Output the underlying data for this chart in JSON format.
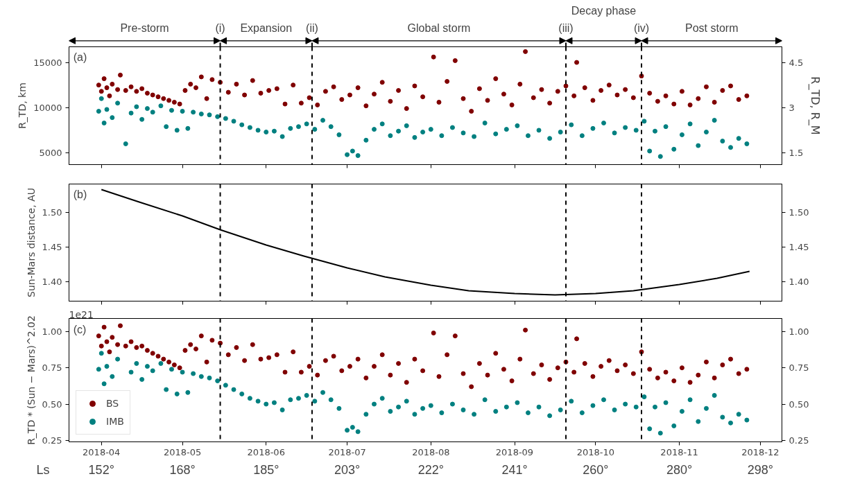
{
  "chart_data": [
    {
      "type": "scatter",
      "title": "(a)",
      "ylabel": "R_TD, km",
      "y2label": "R_TD, R_M",
      "xlim": [
        "2018-03-20",
        "2018-12-09"
      ],
      "ylim": [
        3700,
        16730
      ],
      "y2lim": [
        1.11,
        5.02
      ],
      "yticks": [
        5000,
        10000,
        15000
      ],
      "y2ticks": [
        1.5,
        3,
        4.5
      ],
      "xticks": [
        {
          "value": "2018-04-01",
          "label": null
        },
        {
          "value": "2018-05-01",
          "label": null
        },
        {
          "value": "2018-06-01",
          "label": null
        },
        {
          "value": "2018-07-01",
          "label": null
        },
        {
          "value": "2018-08-01",
          "label": null
        },
        {
          "value": "2018-09-01",
          "label": null
        },
        {
          "value": "2018-10-01",
          "label": null
        },
        {
          "value": "2018-11-01",
          "label": null
        },
        {
          "value": "2018-12-01",
          "label": null
        }
      ],
      "tick_labels": "y",
      "grid": false,
      "marker": "circle",
      "legend": false,
      "annotations": [
        "Pre-storm",
        "Expansion",
        "Global storm",
        "Decay phase",
        "Post storm"
      ],
      "ref_lines": [
        {
          "axis": "x",
          "value": "2018-05-15",
          "label": "(i)",
          "color": "#000000",
          "line_style": "dashed"
        },
        {
          "axis": "x",
          "value": "2018-06-18",
          "label": "(ii)",
          "color": "#000000",
          "line_style": "dashed"
        },
        {
          "axis": "x",
          "value": "2018-09-20",
          "label": "(iii)",
          "color": "#000000",
          "line_style": "dashed"
        },
        {
          "axis": "x",
          "value": "2018-10-18",
          "label": "(iv)",
          "color": "#000000",
          "line_style": "dashed"
        }
      ],
      "series": [
        {
          "color": "#800000",
          "x": [
            "2018-03-31",
            "2018-04-01",
            "2018-04-02",
            "2018-04-03",
            "2018-04-04",
            "2018-04-05",
            "2018-04-07",
            "2018-04-08",
            "2018-04-10",
            "2018-04-12",
            "2018-04-14",
            "2018-04-16",
            "2018-04-18",
            "2018-04-20",
            "2018-04-22",
            "2018-04-24",
            "2018-04-26",
            "2018-04-28",
            "2018-04-30",
            "2018-05-02",
            "2018-05-04",
            "2018-05-06",
            "2018-05-08",
            "2018-05-10",
            "2018-05-12",
            "2018-05-15",
            "2018-05-18",
            "2018-05-21",
            "2018-05-24",
            "2018-05-27",
            "2018-05-30",
            "2018-06-02",
            "2018-06-05",
            "2018-06-08",
            "2018-06-11",
            "2018-06-14",
            "2018-06-17",
            "2018-06-20",
            "2018-06-23",
            "2018-06-26",
            "2018-06-29",
            "2018-07-02",
            "2018-07-05",
            "2018-07-08",
            "2018-07-11",
            "2018-07-14",
            "2018-07-17",
            "2018-07-20",
            "2018-07-23",
            "2018-07-26",
            "2018-07-29",
            "2018-08-02",
            "2018-08-04",
            "2018-08-07",
            "2018-08-10",
            "2018-08-13",
            "2018-08-16",
            "2018-08-19",
            "2018-08-22",
            "2018-08-25",
            "2018-08-28",
            "2018-08-31",
            "2018-09-03",
            "2018-09-05",
            "2018-09-08",
            "2018-09-11",
            "2018-09-14",
            "2018-09-17",
            "2018-09-20",
            "2018-09-23",
            "2018-09-24",
            "2018-09-27",
            "2018-09-30",
            "2018-10-03",
            "2018-10-06",
            "2018-10-09",
            "2018-10-12",
            "2018-10-15",
            "2018-10-18",
            "2018-10-21",
            "2018-10-24",
            "2018-10-27",
            "2018-10-30",
            "2018-11-02",
            "2018-11-05",
            "2018-11-08",
            "2018-11-11",
            "2018-11-14",
            "2018-11-17",
            "2018-11-20",
            "2018-11-23",
            "2018-11-26"
          ],
          "values": [
            12500,
            11800,
            13200,
            12200,
            11300,
            12600,
            12000,
            13600,
            11900,
            12300,
            11800,
            12100,
            11600,
            11400,
            11200,
            11000,
            10800,
            10600,
            10400,
            11900,
            12600,
            12200,
            13400,
            11000,
            13100,
            12800,
            11700,
            12600,
            11400,
            13000,
            11600,
            11900,
            12100,
            10400,
            12500,
            10500,
            11100,
            10300,
            11800,
            12300,
            10900,
            11400,
            12200,
            10200,
            11500,
            12800,
            10700,
            11900,
            9900,
            12400,
            11200,
            15600,
            10600,
            12900,
            15200,
            11000,
            9600,
            12100,
            10800,
            13200,
            11500,
            10300,
            12600,
            16200,
            11100,
            12000,
            10500,
            11800,
            12400,
            11300,
            15000,
            12200,
            10800,
            11900,
            12500,
            11400,
            12000,
            11100,
            13500,
            11600,
            10700,
            11300,
            10400,
            11800,
            10300,
            11000,
            12300,
            10600,
            11900,
            12400,
            10900,
            11300
          ]
        },
        {
          "color": "#008080",
          "x": [
            "2018-03-31",
            "2018-04-01",
            "2018-04-02",
            "2018-04-03",
            "2018-04-05",
            "2018-04-07",
            "2018-04-10",
            "2018-04-12",
            "2018-04-14",
            "2018-04-16",
            "2018-04-18",
            "2018-04-20",
            "2018-04-23",
            "2018-04-25",
            "2018-04-27",
            "2018-04-29",
            "2018-05-01",
            "2018-05-03",
            "2018-05-05",
            "2018-05-08",
            "2018-05-11",
            "2018-05-14",
            "2018-05-17",
            "2018-05-20",
            "2018-05-23",
            "2018-05-26",
            "2018-05-29",
            "2018-06-01",
            "2018-06-04",
            "2018-06-07",
            "2018-06-10",
            "2018-06-13",
            "2018-06-16",
            "2018-06-19",
            "2018-06-22",
            "2018-06-25",
            "2018-06-28",
            "2018-07-01",
            "2018-07-03",
            "2018-07-05",
            "2018-07-08",
            "2018-07-11",
            "2018-07-14",
            "2018-07-17",
            "2018-07-20",
            "2018-07-23",
            "2018-07-26",
            "2018-07-29",
            "2018-08-01",
            "2018-08-05",
            "2018-08-09",
            "2018-08-13",
            "2018-08-17",
            "2018-08-21",
            "2018-08-25",
            "2018-08-29",
            "2018-09-02",
            "2018-09-06",
            "2018-09-10",
            "2018-09-14",
            "2018-09-18",
            "2018-09-22",
            "2018-09-26",
            "2018-09-30",
            "2018-10-04",
            "2018-10-08",
            "2018-10-12",
            "2018-10-16",
            "2018-10-19",
            "2018-10-21",
            "2018-10-23",
            "2018-10-25",
            "2018-10-27",
            "2018-10-30",
            "2018-11-02",
            "2018-11-05",
            "2018-11-08",
            "2018-11-11",
            "2018-11-14",
            "2018-11-17",
            "2018-11-20",
            "2018-11-23",
            "2018-11-26"
          ],
          "values": [
            9600,
            11000,
            8300,
            9800,
            8900,
            10500,
            6000,
            9400,
            10100,
            8700,
            9900,
            9500,
            10200,
            7900,
            9700,
            7500,
            9600,
            7700,
            9500,
            9300,
            9200,
            9000,
            8800,
            8500,
            8100,
            7800,
            7500,
            7300,
            7400,
            6800,
            7700,
            7900,
            8200,
            7600,
            8600,
            7900,
            7000,
            4800,
            5200,
            4700,
            6400,
            7600,
            8200,
            6900,
            7400,
            8000,
            6700,
            7300,
            7600,
            6900,
            7800,
            7200,
            6800,
            8300,
            7100,
            7600,
            8000,
            6900,
            7500,
            6600,
            7300,
            8100,
            6900,
            7700,
            8300,
            7200,
            7800,
            7500,
            8500,
            5200,
            7400,
            4600,
            7900,
            5400,
            7000,
            8200,
            5800,
            7300,
            8600,
            6300,
            5600,
            6600,
            6000
          ]
        }
      ]
    },
    {
      "type": "line",
      "title": "(b)",
      "ylabel": "Sun-Mars distance, AU",
      "xlim": [
        "2018-03-20",
        "2018-12-09"
      ],
      "ylim": [
        1.372,
        1.541
      ],
      "y2lim": [
        1.372,
        1.541
      ],
      "yticks": [
        {
          "value": 1.4,
          "label": "1.40"
        },
        {
          "value": 1.45,
          "label": "1.45"
        },
        {
          "value": 1.5,
          "label": "1.50"
        }
      ],
      "y2ticks": [
        {
          "value": 1.4,
          "label": "1.40"
        },
        {
          "value": 1.45,
          "label": "1.45"
        },
        {
          "value": 1.5,
          "label": "1.50"
        }
      ],
      "xticks": [
        {
          "value": "2018-04-01",
          "label": null
        },
        {
          "value": "2018-05-01",
          "label": null
        },
        {
          "value": "2018-06-01",
          "label": null
        },
        {
          "value": "2018-07-01",
          "label": null
        },
        {
          "value": "2018-08-01",
          "label": null
        },
        {
          "value": "2018-09-01",
          "label": null
        },
        {
          "value": "2018-10-01",
          "label": null
        },
        {
          "value": "2018-11-01",
          "label": null
        },
        {
          "value": "2018-12-01",
          "label": null
        }
      ],
      "tick_labels": "y",
      "grid": false,
      "legend": false,
      "line_style": "solid",
      "ref_lines": [
        {
          "axis": "x",
          "value": "2018-05-15",
          "color": "#000000",
          "line_style": "dashed"
        },
        {
          "axis": "x",
          "value": "2018-06-18",
          "color": "#000000",
          "line_style": "dashed"
        },
        {
          "axis": "x",
          "value": "2018-09-20",
          "color": "#000000",
          "line_style": "dashed"
        },
        {
          "axis": "x",
          "value": "2018-10-18",
          "color": "#000000",
          "line_style": "dashed"
        }
      ],
      "series": [
        {
          "color": "#000000",
          "x": [
            "2018-04-01",
            "2018-04-15",
            "2018-05-01",
            "2018-05-15",
            "2018-06-01",
            "2018-06-15",
            "2018-07-01",
            "2018-07-15",
            "2018-08-01",
            "2018-08-15",
            "2018-09-01",
            "2018-09-16",
            "2018-10-01",
            "2018-10-15",
            "2018-11-01",
            "2018-11-15",
            "2018-11-27"
          ],
          "values": [
            1.533,
            1.515,
            1.495,
            1.475,
            1.453,
            1.437,
            1.42,
            1.407,
            1.395,
            1.387,
            1.383,
            1.381,
            1.383,
            1.387,
            1.396,
            1.405,
            1.415
          ]
        }
      ]
    },
    {
      "type": "scatter",
      "title": "(c)",
      "ylabel": "R_TD * (Sun − Mars)^2.02",
      "xlim": [
        "2018-03-20",
        "2018-12-09"
      ],
      "ylim": [
        0.24,
        1.09
      ],
      "y2lim": [
        0.24,
        1.09
      ],
      "yticks": [
        0.25,
        {
          "value": 0.5,
          "label": "0.50"
        },
        0.75,
        {
          "value": 1.0,
          "label": "1.00"
        }
      ],
      "y2ticks": [
        0.25,
        {
          "value": 0.5,
          "label": "0.50"
        },
        0.75,
        {
          "value": 1.0,
          "label": "1.00"
        }
      ],
      "xticks": [
        {
          "value": "2018-04-01",
          "label": "2018-04"
        },
        {
          "value": "2018-05-01",
          "label": "2018-05"
        },
        {
          "value": "2018-06-01",
          "label": "2018-06"
        },
        {
          "value": "2018-07-01",
          "label": "2018-07"
        },
        {
          "value": "2018-08-01",
          "label": "2018-08"
        },
        {
          "value": "2018-09-01",
          "label": "2018-09"
        },
        {
          "value": "2018-10-01",
          "label": "2018-10"
        },
        {
          "value": "2018-11-01",
          "label": "2018-11"
        },
        {
          "value": "2018-12-01",
          "label": "2018-12"
        }
      ],
      "grid": false,
      "marker": "circle",
      "legend": "bottom left",
      "annotations": [
        "1e21",
        "Ls",
        "152°",
        "168°",
        "185°",
        "203°",
        "222°",
        "241°",
        "260°",
        "280°",
        "298°"
      ],
      "ref_lines": [
        {
          "axis": "x",
          "value": "2018-05-15",
          "color": "#000000",
          "line_style": "dashed"
        },
        {
          "axis": "x",
          "value": "2018-06-18",
          "color": "#000000",
          "line_style": "dashed"
        },
        {
          "axis": "x",
          "value": "2018-09-20",
          "color": "#000000",
          "line_style": "dashed"
        },
        {
          "axis": "x",
          "value": "2018-10-18",
          "color": "#000000",
          "line_style": "dashed"
        }
      ],
      "series": [
        {
          "name": "BS",
          "color": "#800000",
          "x": [
            "2018-03-31",
            "2018-04-01",
            "2018-04-02",
            "2018-04-03",
            "2018-04-04",
            "2018-04-05",
            "2018-04-07",
            "2018-04-08",
            "2018-04-10",
            "2018-04-12",
            "2018-04-14",
            "2018-04-16",
            "2018-04-18",
            "2018-04-20",
            "2018-04-22",
            "2018-04-24",
            "2018-04-26",
            "2018-04-28",
            "2018-04-30",
            "2018-05-02",
            "2018-05-04",
            "2018-05-06",
            "2018-05-08",
            "2018-05-10",
            "2018-05-12",
            "2018-05-15",
            "2018-05-18",
            "2018-05-21",
            "2018-05-24",
            "2018-05-27",
            "2018-05-30",
            "2018-06-02",
            "2018-06-05",
            "2018-06-08",
            "2018-06-11",
            "2018-06-14",
            "2018-06-17",
            "2018-06-20",
            "2018-06-23",
            "2018-06-26",
            "2018-06-29",
            "2018-07-02",
            "2018-07-05",
            "2018-07-08",
            "2018-07-11",
            "2018-07-14",
            "2018-07-17",
            "2018-07-20",
            "2018-07-23",
            "2018-07-26",
            "2018-07-29",
            "2018-08-02",
            "2018-08-04",
            "2018-08-07",
            "2018-08-10",
            "2018-08-13",
            "2018-08-16",
            "2018-08-19",
            "2018-08-22",
            "2018-08-25",
            "2018-08-28",
            "2018-08-31",
            "2018-09-03",
            "2018-09-05",
            "2018-09-08",
            "2018-09-11",
            "2018-09-14",
            "2018-09-17",
            "2018-09-20",
            "2018-09-23",
            "2018-09-24",
            "2018-09-27",
            "2018-09-30",
            "2018-10-03",
            "2018-10-06",
            "2018-10-09",
            "2018-10-12",
            "2018-10-15",
            "2018-10-18",
            "2018-10-21",
            "2018-10-24",
            "2018-10-27",
            "2018-10-30",
            "2018-11-02",
            "2018-11-05",
            "2018-11-08",
            "2018-11-11",
            "2018-11-14",
            "2018-11-17",
            "2018-11-20",
            "2018-11-23",
            "2018-11-26"
          ],
          "values": [
            0.97,
            0.9,
            1.03,
            0.93,
            0.86,
            0.96,
            0.91,
            1.04,
            0.9,
            0.93,
            0.89,
            0.9,
            0.87,
            0.85,
            0.83,
            0.81,
            0.79,
            0.77,
            0.75,
            0.87,
            0.91,
            0.88,
            0.97,
            0.79,
            0.94,
            0.92,
            0.84,
            0.89,
            0.8,
            0.91,
            0.81,
            0.82,
            0.84,
            0.72,
            0.86,
            0.72,
            0.76,
            0.7,
            0.8,
            0.83,
            0.73,
            0.76,
            0.81,
            0.68,
            0.76,
            0.84,
            0.7,
            0.78,
            0.65,
            0.81,
            0.73,
            0.99,
            0.69,
            0.84,
            0.97,
            0.71,
            0.62,
            0.78,
            0.7,
            0.85,
            0.74,
            0.66,
            0.81,
            1.01,
            0.71,
            0.77,
            0.67,
            0.75,
            0.79,
            0.72,
            0.95,
            0.78,
            0.69,
            0.76,
            0.8,
            0.73,
            0.77,
            0.71,
            0.86,
            0.74,
            0.68,
            0.72,
            0.66,
            0.75,
            0.65,
            0.7,
            0.79,
            0.68,
            0.77,
            0.81,
            0.71,
            0.74
          ]
        },
        {
          "name": "IMB",
          "color": "#008080",
          "x": [
            "2018-03-31",
            "2018-04-01",
            "2018-04-02",
            "2018-04-03",
            "2018-04-05",
            "2018-04-07",
            "2018-04-10",
            "2018-04-12",
            "2018-04-14",
            "2018-04-16",
            "2018-04-18",
            "2018-04-20",
            "2018-04-23",
            "2018-04-25",
            "2018-04-27",
            "2018-04-29",
            "2018-05-01",
            "2018-05-03",
            "2018-05-05",
            "2018-05-08",
            "2018-05-11",
            "2018-05-14",
            "2018-05-17",
            "2018-05-20",
            "2018-05-23",
            "2018-05-26",
            "2018-05-29",
            "2018-06-01",
            "2018-06-04",
            "2018-06-07",
            "2018-06-10",
            "2018-06-13",
            "2018-06-16",
            "2018-06-19",
            "2018-06-22",
            "2018-06-25",
            "2018-06-28",
            "2018-07-01",
            "2018-07-03",
            "2018-07-05",
            "2018-07-08",
            "2018-07-11",
            "2018-07-14",
            "2018-07-17",
            "2018-07-20",
            "2018-07-23",
            "2018-07-26",
            "2018-07-29",
            "2018-08-01",
            "2018-08-05",
            "2018-08-09",
            "2018-08-13",
            "2018-08-17",
            "2018-08-21",
            "2018-08-25",
            "2018-08-29",
            "2018-09-02",
            "2018-09-06",
            "2018-09-10",
            "2018-09-14",
            "2018-09-18",
            "2018-09-22",
            "2018-09-26",
            "2018-09-30",
            "2018-10-04",
            "2018-10-08",
            "2018-10-12",
            "2018-10-16",
            "2018-10-19",
            "2018-10-21",
            "2018-10-23",
            "2018-10-25",
            "2018-10-27",
            "2018-10-30",
            "2018-11-02",
            "2018-11-05",
            "2018-11-08",
            "2018-11-11",
            "2018-11-14",
            "2018-11-17",
            "2018-11-20",
            "2018-11-23",
            "2018-11-26"
          ],
          "values": [
            0.74,
            0.85,
            0.64,
            0.76,
            0.69,
            0.81,
            null,
            0.72,
            0.78,
            0.67,
            0.76,
            0.73,
            0.78,
            0.6,
            0.74,
            0.57,
            0.72,
            0.58,
            0.71,
            0.69,
            0.68,
            0.66,
            0.63,
            0.6,
            0.57,
            0.54,
            0.52,
            0.5,
            0.51,
            0.46,
            0.53,
            0.54,
            0.56,
            0.52,
            0.58,
            0.53,
            0.47,
            0.32,
            0.34,
            0.31,
            0.43,
            0.5,
            0.54,
            0.45,
            0.48,
            0.52,
            0.43,
            0.47,
            0.49,
            0.44,
            0.5,
            0.46,
            0.43,
            0.53,
            0.45,
            0.48,
            0.51,
            0.44,
            0.48,
            0.42,
            0.46,
            0.52,
            0.44,
            0.49,
            0.53,
            0.46,
            0.5,
            0.48,
            0.55,
            0.33,
            0.48,
            0.3,
            0.51,
            0.35,
            0.45,
            0.53,
            0.38,
            0.47,
            0.56,
            0.41,
            0.37,
            0.43,
            0.39
          ]
        }
      ]
    }
  ]
}
